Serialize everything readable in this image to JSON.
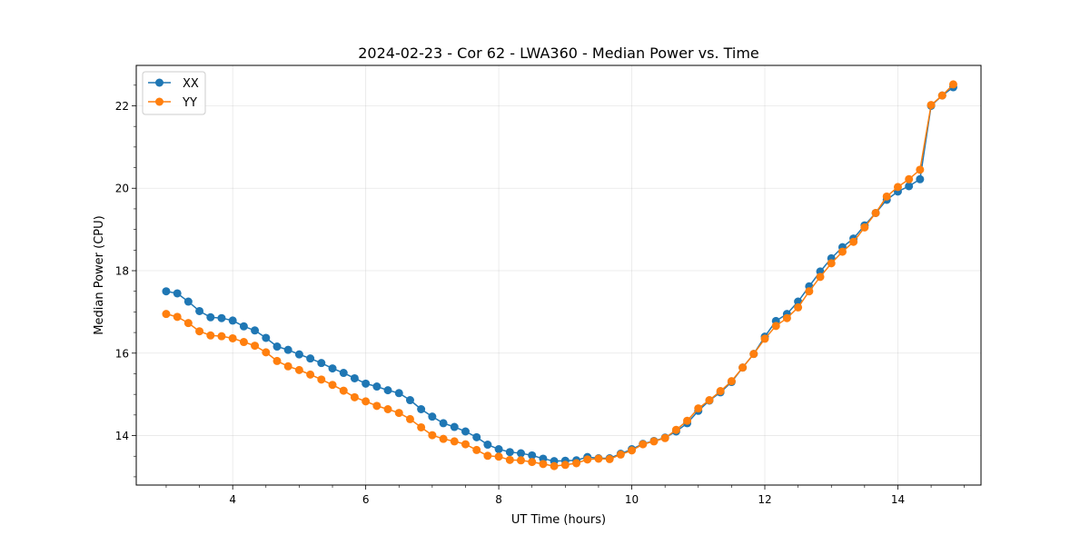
{
  "chart_data": {
    "type": "line",
    "title": "2024-02-23 - Cor 62 - LWA360 - Median Power vs. Time",
    "xlabel": "UT Time (hours)",
    "ylabel": "Median Power (CPU)",
    "xlim": [
      2.55,
      15.25
    ],
    "ylim": [
      12.8,
      22.98
    ],
    "xticks": [
      4,
      6,
      8,
      10,
      12,
      14
    ],
    "yticks": [
      14,
      16,
      18,
      20,
      22
    ],
    "grid": true,
    "legend_position": "top-left",
    "x": [
      3.0,
      3.167,
      3.333,
      3.5,
      3.667,
      3.833,
      4.0,
      4.167,
      4.333,
      4.5,
      4.667,
      4.833,
      5.0,
      5.167,
      5.333,
      5.5,
      5.667,
      5.833,
      6.0,
      6.167,
      6.333,
      6.5,
      6.667,
      6.833,
      7.0,
      7.167,
      7.333,
      7.5,
      7.667,
      7.833,
      8.0,
      8.167,
      8.333,
      8.5,
      8.667,
      8.833,
      9.0,
      9.167,
      9.333,
      9.5,
      9.667,
      9.833,
      10.0,
      10.167,
      10.333,
      10.5,
      10.667,
      10.833,
      11.0,
      11.167,
      11.333,
      11.5,
      11.667,
      11.833,
      12.0,
      12.167,
      12.333,
      12.5,
      12.667,
      12.833,
      13.0,
      13.167,
      13.333,
      13.5,
      13.667,
      13.833,
      14.0,
      14.167,
      14.333,
      14.5,
      14.667,
      14.833
    ],
    "series": [
      {
        "name": "XX",
        "color": "#1f77b4",
        "values": [
          17.5,
          17.45,
          17.25,
          17.02,
          16.87,
          16.85,
          16.79,
          16.65,
          16.55,
          16.37,
          16.16,
          16.08,
          15.97,
          15.87,
          15.76,
          15.63,
          15.52,
          15.39,
          15.26,
          15.19,
          15.1,
          15.03,
          14.86,
          14.64,
          14.46,
          14.3,
          14.21,
          14.1,
          13.96,
          13.78,
          13.67,
          13.6,
          13.57,
          13.52,
          13.44,
          13.38,
          13.39,
          13.4,
          13.48,
          13.45,
          13.45,
          13.56,
          13.67,
          13.8,
          13.87,
          13.95,
          14.1,
          14.3,
          14.6,
          14.85,
          15.05,
          15.3,
          15.65,
          15.98,
          16.4,
          16.78,
          16.95,
          17.25,
          17.62,
          17.98,
          18.3,
          18.57,
          18.78,
          19.1,
          19.4,
          19.72,
          19.92,
          20.05,
          20.22,
          22.0,
          22.25,
          22.45
        ]
      },
      {
        "name": "YY",
        "color": "#ff7f0e",
        "values": [
          16.95,
          16.88,
          16.73,
          16.53,
          16.43,
          16.41,
          16.36,
          16.27,
          16.18,
          16.02,
          15.81,
          15.68,
          15.59,
          15.48,
          15.36,
          15.23,
          15.09,
          14.93,
          14.83,
          14.72,
          14.64,
          14.55,
          14.4,
          14.2,
          14.01,
          13.92,
          13.86,
          13.79,
          13.65,
          13.51,
          13.49,
          13.41,
          13.4,
          13.36,
          13.31,
          13.26,
          13.29,
          13.33,
          13.42,
          13.44,
          13.43,
          13.54,
          13.64,
          13.79,
          13.86,
          13.94,
          14.14,
          14.36,
          14.66,
          14.86,
          15.08,
          15.32,
          15.65,
          15.98,
          16.35,
          16.66,
          16.85,
          17.11,
          17.5,
          17.85,
          18.18,
          18.46,
          18.7,
          19.05,
          19.4,
          19.8,
          20.03,
          20.22,
          20.45,
          22.02,
          22.25,
          22.52
        ]
      }
    ]
  }
}
